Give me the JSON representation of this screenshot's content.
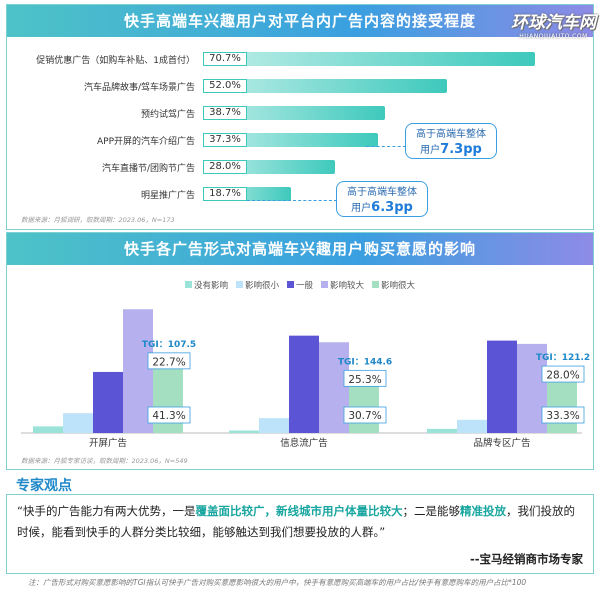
{
  "watermark": {
    "main": "环球汽车网",
    "sub": "HUANQIUAUTO.COM"
  },
  "panel1": {
    "title": "快手高端车兴趣用户对平台内广告内容的接受程度",
    "source": "数据来源：月狐调研，取数周期：2023.06，N=173",
    "callouts": [
      {
        "line1": "高于高端车整体",
        "line2_prefix": "用户",
        "value": "7.3pp"
      },
      {
        "line1": "高于高端车整体",
        "line2_prefix": "用户",
        "value": "6.3pp"
      }
    ]
  },
  "panel2": {
    "title": "快手各广告形式对高端车兴趣用户购买意愿的影响",
    "source": "数据来源：月狐专家访谈，取数周期：2023.06，N=549",
    "legend": [
      "没有影响",
      "影响很小",
      "一般",
      "影响较大",
      "影响很大"
    ]
  },
  "chart_data": [
    {
      "type": "bar",
      "orientation": "horizontal",
      "title": "快手高端车兴趣用户对平台内广告内容的接受程度",
      "categories": [
        "促销优惠广告（如购车补贴、1成首付）",
        "汽车品牌故事/驾车场景广告",
        "预约试驾广告",
        "APP开屏的汽车介绍广告",
        "汽车直播节/团购节广告",
        "明星推广广告"
      ],
      "values": [
        70.7,
        52.0,
        38.7,
        37.3,
        28.0,
        18.7
      ],
      "labels": [
        "70.7%",
        "52.0%",
        "38.7%",
        "37.3%",
        "28.0%",
        "18.7%"
      ],
      "xlim": [
        0,
        100
      ],
      "colors": {
        "bar_start": "#bfeee9",
        "bar_end": "#3ec9bc"
      }
    },
    {
      "type": "bar",
      "orientation": "vertical",
      "title": "快手各广告形式对高端车兴趣用户购买意愿的影响",
      "categories": [
        "开屏广告",
        "信息流广告",
        "品牌专区广告"
      ],
      "series": [
        {
          "name": "没有影响",
          "color": "#9be3d9",
          "values": [
            4,
            1.5,
            2.5
          ]
        },
        {
          "name": "影响很小",
          "color": "#bde3fb",
          "values": [
            12,
            9,
            8
          ]
        },
        {
          "name": "一般",
          "color": "#5b55d6",
          "values": [
            37,
            59,
            56
          ]
        },
        {
          "name": "影响较大",
          "color": "#b6b1ee",
          "values": [
            75,
            55,
            54
          ]
        },
        {
          "name": "影响很大",
          "color": "#a5dfc2",
          "values": [
            41.3,
            30.7,
            33.3
          ]
        }
      ],
      "annotations": [
        {
          "category": "开屏广告",
          "top_label": "22.7%",
          "bottom_label": "41.3%",
          "tgi": "TGI：107.5"
        },
        {
          "category": "信息流广告",
          "top_label": "25.3%",
          "bottom_label": "30.7%",
          "tgi": "TGI：144.6"
        },
        {
          "category": "品牌专区广告",
          "top_label": "28.0%",
          "bottom_label": "33.3%",
          "tgi": "TGI：121.2"
        }
      ],
      "ylim": [
        0,
        80
      ]
    }
  ],
  "expert": {
    "heading": "专家观点",
    "quote_p1": "“快手的广告能力有两大优势，一是",
    "quote_hl1": "覆盖面比较广，新线城市用户体量比较大",
    "quote_p2": "；二是能够",
    "quote_hl2": "精准投放",
    "quote_p3": "，我们投放的时候，能看到快手的人群分类比较细，能够触达到我们想要投放的人群。”",
    "author": "--宝马经销商市场专家"
  },
  "footnote": "注：广告形式对购买意愿影响的TGI指认可快手广告对购买意愿影响很大的用户中，快手有意愿购买高端车的用户占比/快手有意愿购车的用户占比*100"
}
